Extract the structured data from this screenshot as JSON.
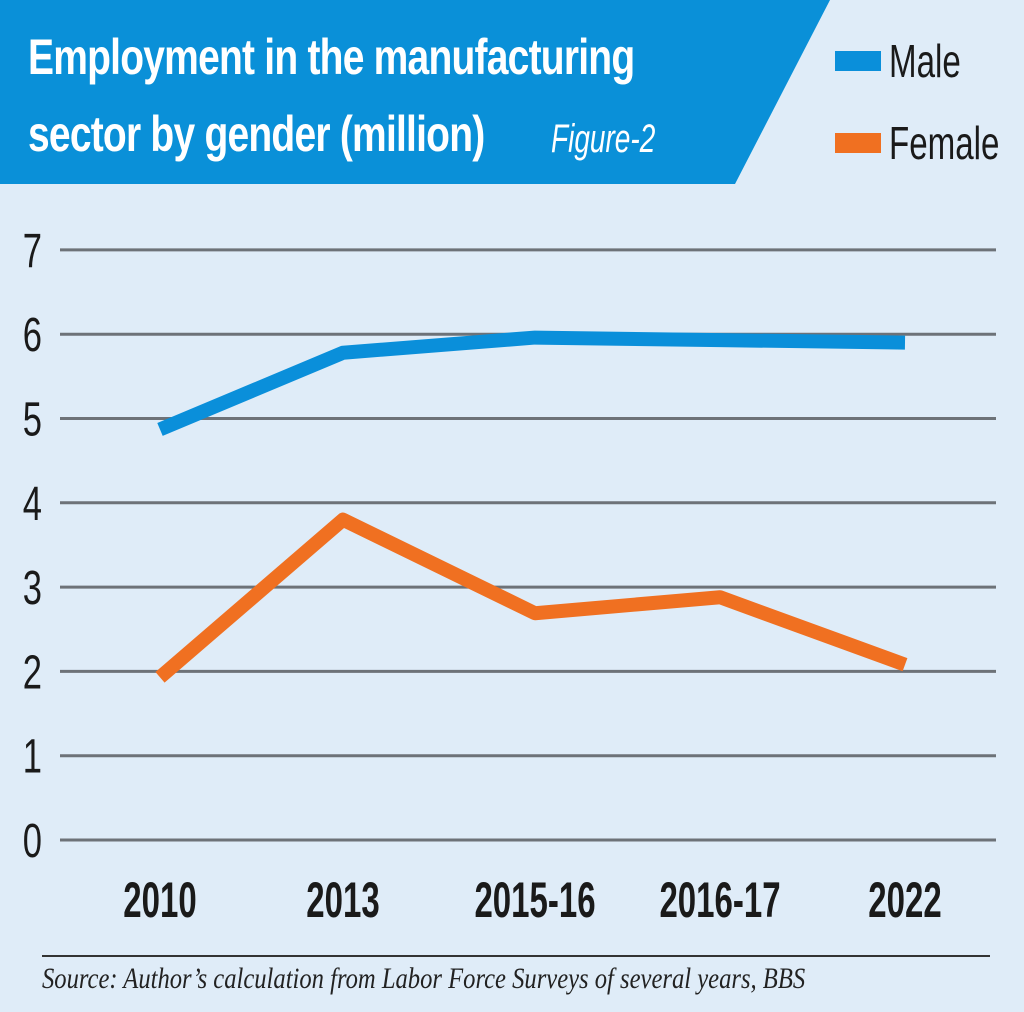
{
  "title_lines": [
    "Employment in the manufacturing",
    "sector by gender (million)"
  ],
  "figure_label": "Figure-2",
  "source": "Source: Author’s calculation from Labor Force Surveys of several years, BBS",
  "colors": {
    "banner": "#0a90d8",
    "male": "#0a8fda",
    "female": "#f07021",
    "grid": "#6d7278",
    "background": "#dfecf8"
  },
  "chart_data": {
    "type": "line",
    "title": "Employment in the manufacturing sector by gender (million)",
    "xlabel": "",
    "ylabel": "",
    "categories": [
      "2010",
      "2013",
      "2015-16",
      "2016-17",
      "2022"
    ],
    "ylim": [
      0,
      7
    ],
    "yticks": [
      "0",
      "1",
      "2",
      "3",
      "4",
      "5",
      "6",
      "7"
    ],
    "grid": true,
    "legend_position": "top-right",
    "series": [
      {
        "name": "Male",
        "color": "#0a8fda",
        "values": [
          4.87,
          5.78,
          5.96,
          5.93,
          5.9
        ]
      },
      {
        "name": "Female",
        "color": "#f07021",
        "values": [
          1.93,
          3.8,
          2.69,
          2.88,
          2.08
        ]
      }
    ]
  }
}
